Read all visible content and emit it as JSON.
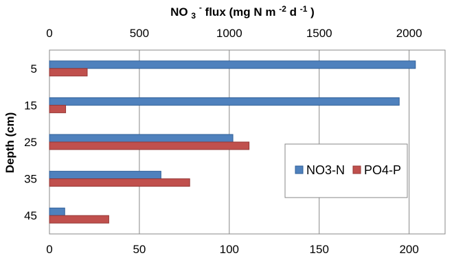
{
  "chart_data": {
    "type": "bar",
    "orientation": "horizontal",
    "title": "",
    "categories": [
      "5",
      "15",
      "25",
      "35",
      "45"
    ],
    "series": [
      {
        "name": "NO3-N",
        "axis": "top",
        "values": [
          2035,
          1945,
          1020,
          620,
          85
        ],
        "color": "#4f81bd",
        "stroke": "#2f5f98"
      },
      {
        "name": "PO4-P",
        "axis": "bottom",
        "values": [
          21,
          9,
          111,
          78,
          33
        ],
        "color": "#c0504d",
        "stroke": "#953735"
      }
    ],
    "top_axis": {
      "label_prefix": "NO",
      "label_sub": "3",
      "label_sup1": "-",
      "label_mid": " flux (mg N m",
      "label_sup2": "-2",
      "label_mid2": " d",
      "label_sup3": "-1",
      "label_end": ")",
      "range": [
        0,
        2200
      ],
      "ticks": [
        0,
        500,
        1000,
        1500,
        2000
      ]
    },
    "bottom_axis": {
      "label": "",
      "range": [
        0,
        220
      ],
      "ticks": [
        0,
        50,
        100,
        150,
        200
      ]
    },
    "ylabel": "Depth (cm)",
    "grid": "vertical",
    "legend": {
      "position": "right",
      "entries": [
        "NO3-N",
        "PO4-P"
      ]
    },
    "colors": {
      "grid": "#878787",
      "frame": "#878787"
    }
  }
}
